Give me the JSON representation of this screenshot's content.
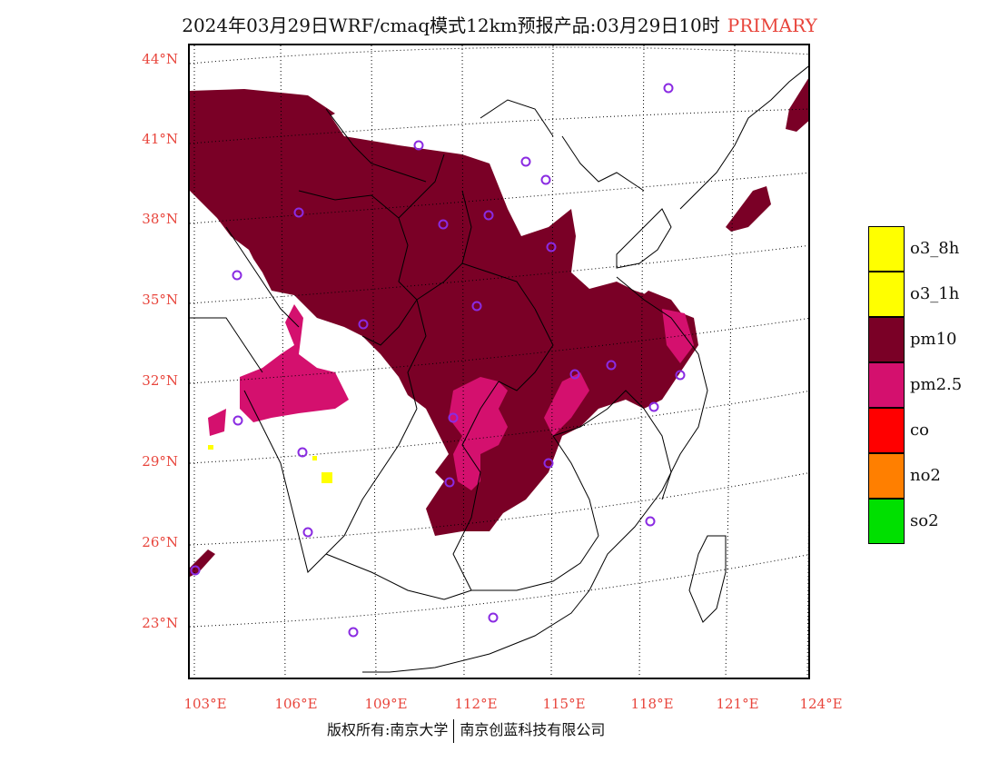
{
  "title": {
    "main": "2024年03月29日WRF/cmaq模式12km预报产品:03月29日10时",
    "tag": "PRIMARY"
  },
  "lat_labels": [
    "44°N",
    "41°N",
    "38°N",
    "35°N",
    "32°N",
    "29°N",
    "26°N",
    "23°N"
  ],
  "lon_labels": [
    "103°E",
    "106°E",
    "109°E",
    "112°E",
    "115°E",
    "118°E",
    "121°E",
    "124°E"
  ],
  "legend": [
    {
      "label": "o3_8h",
      "color": "#ffff00"
    },
    {
      "label": "o3_1h",
      "color": "#ffff00"
    },
    {
      "label": "pm10",
      "color": "#7a0026"
    },
    {
      "label": "pm2.5",
      "color": "#d4106e"
    },
    {
      "label": "co",
      "color": "#ff0000"
    },
    {
      "label": "no2",
      "color": "#ff7f00"
    },
    {
      "label": "so2",
      "color": "#00e000"
    }
  ],
  "footer": {
    "left": "版权所有:南京大学",
    "right": "南京创蓝科技有限公司"
  },
  "colors": {
    "pm10": "#7a0026",
    "pm25": "#d4106e",
    "o3": "#ffff00",
    "accent_red": "#e8453c",
    "station_marker": "#8a2be2"
  }
}
